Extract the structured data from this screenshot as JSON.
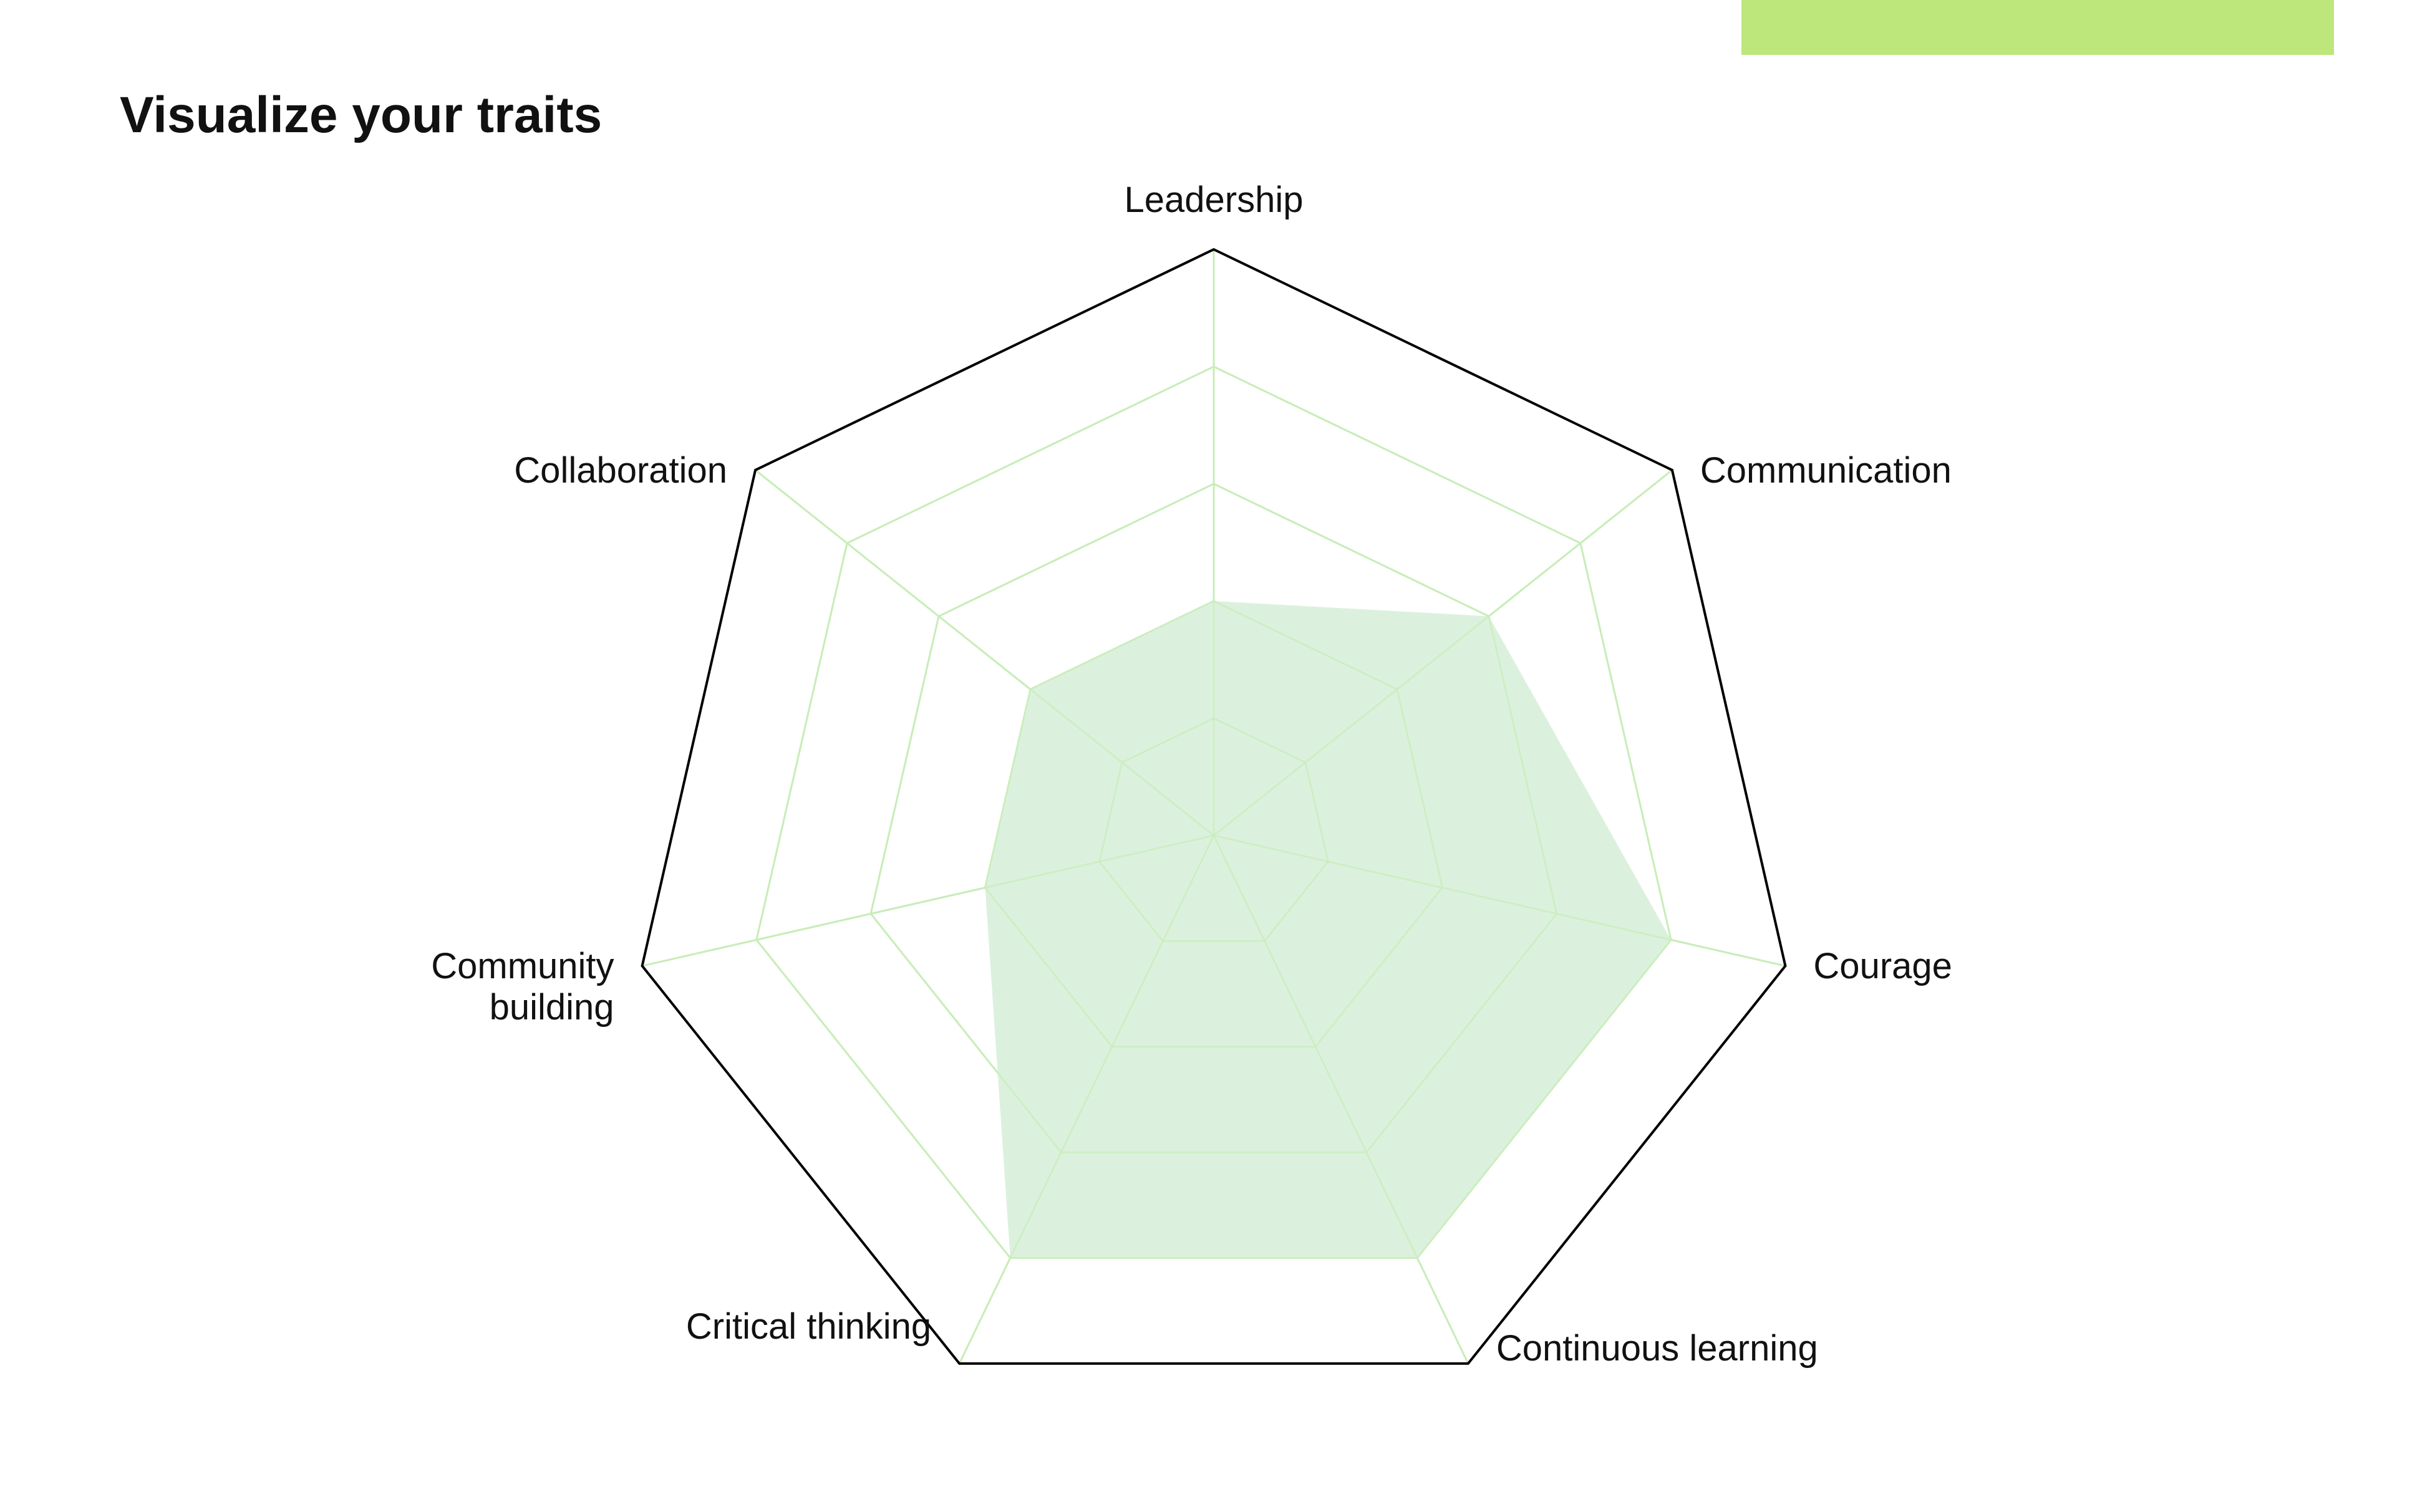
{
  "title": "Visualize your traits",
  "colors": {
    "accent": "#bde67b",
    "fill": "#d8efd9",
    "grid": "#c8edb9",
    "outer": "#000000",
    "text": "#111111"
  },
  "chart_data": {
    "type": "radar",
    "title": "",
    "axes": [
      {
        "lines": [
          "Leadership"
        ]
      },
      {
        "lines": [
          "Communication"
        ]
      },
      {
        "lines": [
          "Courage"
        ]
      },
      {
        "lines": [
          "Continuous learning"
        ]
      },
      {
        "lines": [
          "Critical thinking"
        ]
      },
      {
        "lines": [
          "Community",
          "building"
        ]
      },
      {
        "lines": [
          "Collaboration"
        ]
      }
    ],
    "series": [
      {
        "values": [
          2,
          3,
          4,
          4,
          4,
          2,
          2
        ]
      }
    ],
    "range": [
      0,
      5
    ],
    "rings": 5,
    "grid": true,
    "legend": "none"
  }
}
